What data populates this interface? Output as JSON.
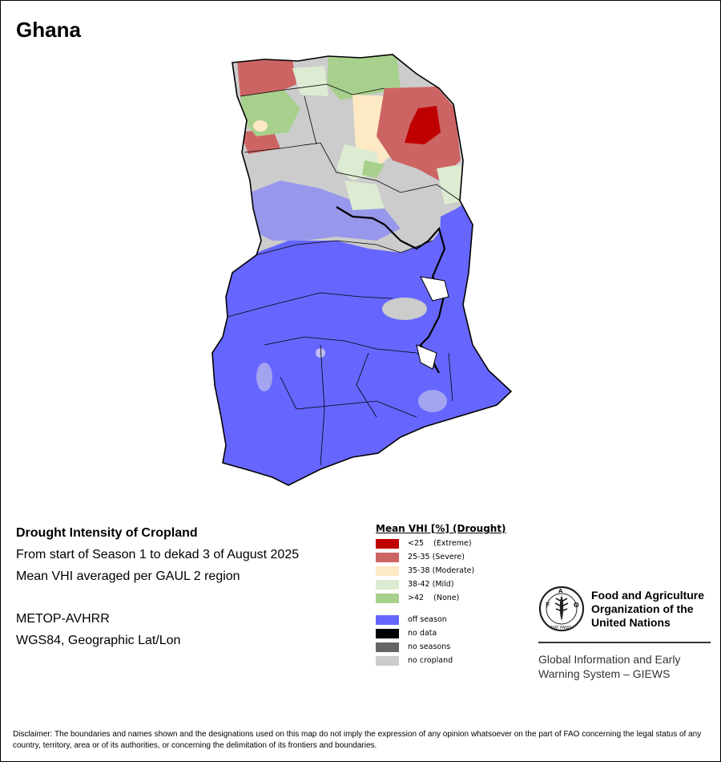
{
  "title": "Ghana",
  "info": {
    "line1": "Drought Intensity of Cropland",
    "line2": "From start of Season 1 to dekad 3 of August 2025",
    "line3": "Mean VHI averaged per GAUL 2 region",
    "line4": "METOP-AVHRR",
    "line5": "WGS84, Geographic Lat/Lon"
  },
  "legend": {
    "title": "Mean VHI [%] (Drought)",
    "classes": [
      {
        "label": "<25    (Extreme)",
        "color": "#c00000"
      },
      {
        "label": "25-35 (Severe)",
        "color": "#cd6464"
      },
      {
        "label": "35-38 (Moderate)",
        "color": "#fde9c4"
      },
      {
        "label": "38-42 (Mild)",
        "color": "#dcebd2"
      },
      {
        "label": ">42    (None)",
        "color": "#a8d08d"
      }
    ],
    "other": [
      {
        "label": "off season",
        "color": "#6666ff"
      },
      {
        "label": "no data",
        "color": "#000000"
      },
      {
        "label": "no seasons",
        "color": "#666666"
      },
      {
        "label": "no cropland",
        "color": "#cccccc"
      }
    ]
  },
  "fao": {
    "name_line1": "Food and Agriculture",
    "name_line2": "Organization of the",
    "name_line3": "United Nations",
    "giews_line1": "Global Information and Early",
    "giews_line2": "Warning System – GIEWS",
    "emblem_top": "FAO",
    "emblem_bottom": "FIAT PANIS"
  },
  "disclaimer": "Disclaimer: The boundaries and names shown and the designations used on this map do not imply the expression of any opinion whatsoever on the part of FAO concerning the legal status of any country, territory, area or of its authorities, or concerning the delimitation of its frontiers and boundaries."
}
